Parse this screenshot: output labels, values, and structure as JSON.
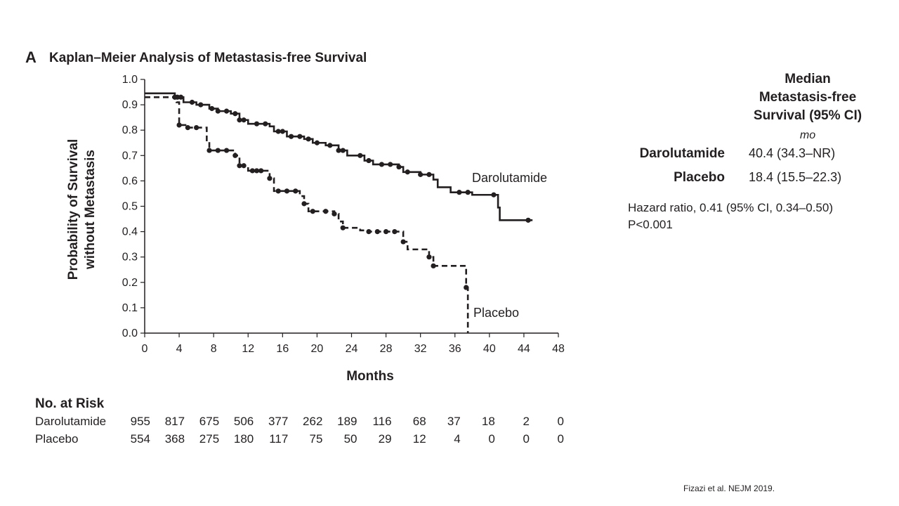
{
  "panel_label": "A",
  "figure_title": "Kaplan–Meier Analysis of Metastasis-free Survival",
  "chart_data": {
    "type": "line",
    "title": "Kaplan–Meier Analysis of Metastasis-free Survival",
    "xlabel": "Months",
    "ylabel_line1": "Probability of Survival",
    "ylabel_line2": "without Metastasis",
    "xlim": [
      0,
      48
    ],
    "ylim": [
      0,
      1.0
    ],
    "x_ticks": [
      "0",
      "4",
      "8",
      "12",
      "16",
      "20",
      "24",
      "28",
      "32",
      "36",
      "40",
      "44",
      "48"
    ],
    "y_ticks": [
      "0.0",
      "0.1",
      "0.2",
      "0.3",
      "0.4",
      "0.5",
      "0.6",
      "0.7",
      "0.8",
      "0.9",
      "1.0"
    ],
    "series": [
      {
        "name": "Darolutamide",
        "line_style": "solid",
        "color": "#231f20",
        "x": [
          0,
          3.5,
          4.5,
          6,
          7.5,
          8.5,
          10,
          11,
          12,
          14.5,
          15,
          16.5,
          18.5,
          19.5,
          21,
          22.5,
          23.5,
          25.5,
          26.5,
          29.5,
          30,
          32,
          33.5,
          34,
          35.5,
          38,
          40.5,
          41,
          41.2,
          45
        ],
        "y": [
          0.945,
          0.93,
          0.91,
          0.9,
          0.885,
          0.875,
          0.865,
          0.84,
          0.825,
          0.815,
          0.795,
          0.775,
          0.765,
          0.75,
          0.74,
          0.72,
          0.7,
          0.68,
          0.665,
          0.655,
          0.635,
          0.625,
          0.605,
          0.575,
          0.555,
          0.545,
          0.545,
          0.495,
          0.445,
          0.445
        ],
        "censor_x": [
          3.5,
          3.8,
          4.2,
          5.5,
          6.5,
          7.8,
          8.5,
          9.5,
          10.5,
          11,
          11.5,
          13,
          14,
          15.5,
          16,
          17,
          18,
          19,
          20,
          21.5,
          22.5,
          23,
          25,
          26,
          27.5,
          28.5,
          29.5,
          30.5,
          32,
          33,
          36.5,
          37.5,
          40.5,
          44.5
        ],
        "label": "Darolutamide"
      },
      {
        "name": "Placebo",
        "line_style": "dashed",
        "color": "#231f20",
        "x": [
          0,
          3.7,
          4,
          5,
          7.2,
          7.5,
          10.5,
          11,
          12,
          14.5,
          15,
          18,
          18.5,
          19,
          22,
          22.5,
          23,
          25,
          26,
          30,
          30.5,
          33,
          33.5,
          37,
          37.3,
          37.5
        ],
        "y": [
          0.93,
          0.91,
          0.82,
          0.81,
          0.76,
          0.72,
          0.7,
          0.66,
          0.64,
          0.61,
          0.56,
          0.54,
          0.51,
          0.48,
          0.47,
          0.44,
          0.415,
          0.405,
          0.4,
          0.36,
          0.33,
          0.3,
          0.265,
          0.265,
          0.18,
          0.0
        ],
        "censor_x": [
          3.5,
          4,
          5,
          6,
          7.5,
          8.5,
          9.5,
          10.5,
          11,
          11.5,
          12.5,
          13,
          13.5,
          14.5,
          15.5,
          16.5,
          17.5,
          18.5,
          19.5,
          21,
          22,
          23,
          26,
          27,
          28,
          29,
          30,
          33,
          33.5,
          37.3
        ],
        "label": "Placebo"
      }
    ]
  },
  "median": {
    "header_line1": "Median",
    "header_line2": "Metastasis-free",
    "header_line3": "Survival (95% CI)",
    "unit": "mo",
    "rows": [
      {
        "arm": "Darolutamide",
        "value": "40.4 (34.3–NR)"
      },
      {
        "arm": "Placebo",
        "value": "18.4 (15.5–22.3)"
      }
    ],
    "hazard_line1": "Hazard ratio, 0.41 (95% CI, 0.34–0.50)",
    "hazard_line2": "P<0.001"
  },
  "risk_table": {
    "title": "No. at Risk",
    "rows": [
      {
        "arm": "Darolutamide",
        "values": [
          "955",
          "817",
          "675",
          "506",
          "377",
          "262",
          "189",
          "116",
          "68",
          "37",
          "18",
          "2",
          "0"
        ]
      },
      {
        "arm": "Placebo",
        "values": [
          "554",
          "368",
          "275",
          "180",
          "117",
          "75",
          "50",
          "29",
          "12",
          "4",
          "0",
          "0",
          "0"
        ]
      }
    ]
  },
  "citation": "Fizazi et al. NEJM 2019."
}
